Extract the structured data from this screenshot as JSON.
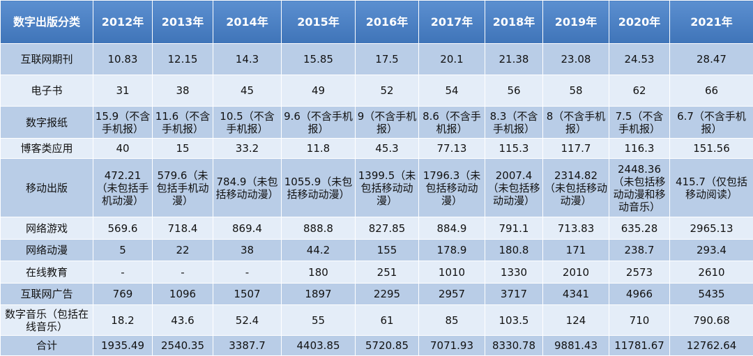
{
  "table": {
    "header": [
      "数字出版分类",
      "2012年",
      "2013年",
      "2014年",
      "2015年",
      "2016年",
      "2017年",
      "2018年",
      "2019年",
      "2020年",
      "2021年"
    ],
    "rows": [
      [
        "互联网期刊",
        "10.83",
        "12.15",
        "14.3",
        "15.85",
        "17.5",
        "20.1",
        "21.38",
        "23.08",
        "24.53",
        "28.47"
      ],
      [
        "电子书",
        "31",
        "38",
        "45",
        "49",
        "52",
        "54",
        "56",
        "58",
        "62",
        "66"
      ],
      [
        "数字报纸",
        "15.9（不含手机报）",
        "11.6（不含手机报）",
        "10.5（不含手机报）",
        "9.6（不含手机报）",
        "9（不含手机报）",
        "8.6（不含手机报）",
        "8.3（不含手机报）",
        "8（不含手机报）",
        "7.5（不含手机报）",
        "6.7（不含手机报）"
      ],
      [
        "博客类应用",
        "40",
        "15",
        "33.2",
        "11.8",
        "45.3",
        "77.13",
        "115.3",
        "117.7",
        "116.3",
        "151.56"
      ],
      [
        "移动出版",
        "472.21（未包括手机动漫）",
        "579.6（未包括手机动漫）",
        "784.9（未包括移动动漫）",
        "1055.9（未包括移动动漫）",
        "1399.5（未包括移动动漫）",
        "1796.3（未包括移动动漫）",
        "2007.4（未包括移动动漫）",
        "2314.82（未包括移动动漫）",
        "2448.36（未包括移动动漫和移动音乐）",
        "415.7（仅包括移动阅读）"
      ],
      [
        "网络游戏",
        "569.6",
        "718.4",
        "869.4",
        "888.8",
        "827.85",
        "884.9",
        "791.1",
        "713.83",
        "635.28",
        "2965.13"
      ],
      [
        "网络动漫",
        "5",
        "22",
        "38",
        "44.2",
        "155",
        "178.9",
        "180.8",
        "171",
        "238.7",
        "293.4"
      ],
      [
        "在线教育",
        "-",
        "-",
        "-",
        "180",
        "251",
        "1010",
        "1330",
        "2010",
        "2573",
        "2610"
      ],
      [
        "互联网广告",
        "769",
        "1096",
        "1507",
        "1897",
        "2295",
        "2957",
        "3717",
        "4341",
        "4966",
        "5435"
      ],
      [
        "数字音乐（包括在线音乐）",
        "18.2",
        "43.6",
        "52.4",
        "55",
        "61",
        "85",
        "103.5",
        "124",
        "710",
        "790.68"
      ],
      [
        "合计",
        "1935.49",
        "2540.35",
        "3387.7",
        "4403.85",
        "5720.85",
        "7071.93",
        "8330.78",
        "9881.43",
        "11781.67",
        "12762.64"
      ]
    ]
  }
}
